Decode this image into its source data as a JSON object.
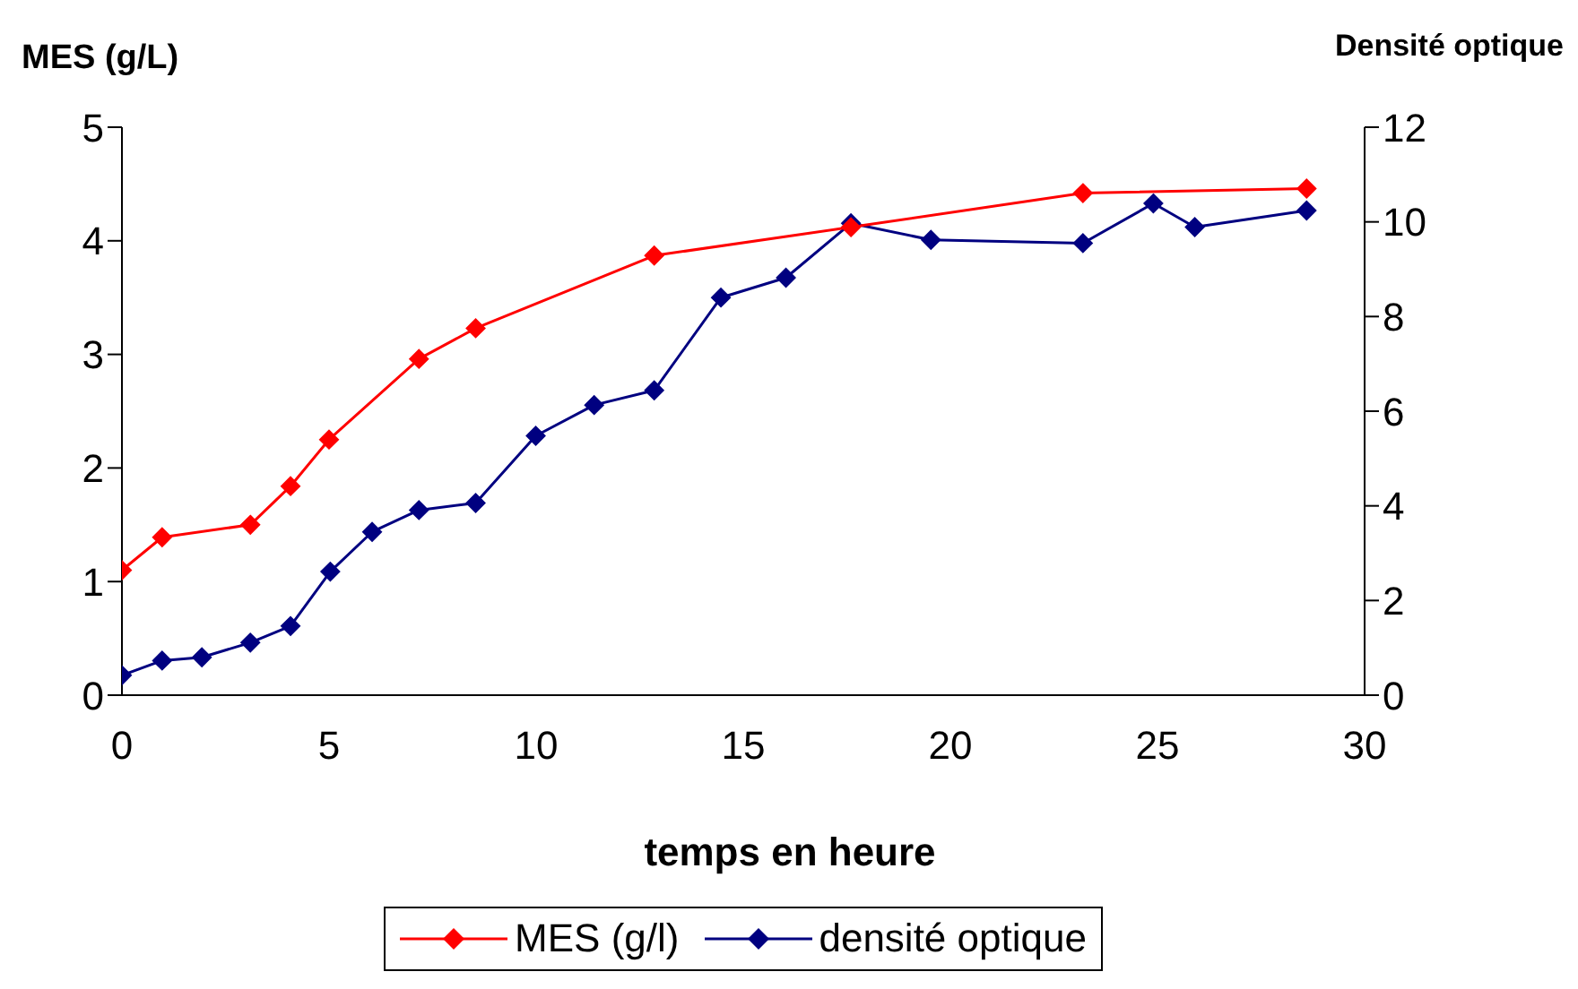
{
  "chart_data": {
    "type": "line",
    "xlabel": "temps en heure",
    "ylabel": "MES (g/L)",
    "y2label": "Densité optique",
    "xlim": [
      0,
      30
    ],
    "xticks": [
      0,
      5,
      10,
      15,
      20,
      25,
      30
    ],
    "ylim": [
      0,
      5
    ],
    "yticks": [
      0,
      1,
      2,
      3,
      4,
      5
    ],
    "y2lim": [
      0,
      12
    ],
    "y2ticks": [
      0,
      2,
      4,
      6,
      8,
      10,
      12
    ],
    "grid": false,
    "legend": "bottom",
    "marker": "diamond",
    "line_style": "solid",
    "series": [
      {
        "name": "MES (g/l)",
        "color": "#ff0000",
        "x": [
          0,
          0.97,
          3.1,
          4.07,
          5,
          7.17,
          8.54,
          12.85,
          17.6,
          23.2,
          28.6
        ],
        "values": [
          1.1,
          1.39,
          1.5,
          1.84,
          2.25,
          2.96,
          3.23,
          3.87,
          4.12,
          4.42,
          4.46
        ]
      },
      {
        "name": "densité optique",
        "color": "#000080",
        "axis": "y2",
        "x": [
          0,
          0.97,
          1.93,
          3.1,
          4.07,
          5.03,
          6.04,
          7.17,
          8.54,
          9.99,
          11.4,
          12.85,
          14.46,
          16.03,
          17.6,
          19.53,
          23.2,
          24.9,
          25.9,
          28.6
        ],
        "values": [
          0.42,
          0.73,
          0.8,
          1.11,
          1.46,
          2.61,
          3.45,
          3.91,
          4.06,
          5.48,
          6.13,
          6.44,
          8.4,
          8.82,
          9.97,
          9.62,
          9.55,
          10.39,
          9.89,
          10.24
        ]
      }
    ]
  }
}
